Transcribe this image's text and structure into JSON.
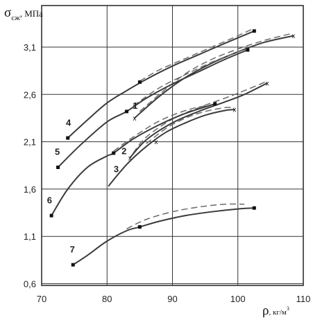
{
  "chart_data": {
    "type": "line",
    "title": "",
    "ylabel": {
      "main": "σ",
      "sub": "сж",
      "unit": ", МПа"
    },
    "xlabel": {
      "main": "ρ",
      "unit": ", кг/м",
      "sup": "3"
    },
    "xlim": [
      70,
      110
    ],
    "ylim": [
      0.6,
      3.4
    ],
    "x_ticks": [
      "70",
      "80",
      "90",
      "100",
      "110"
    ],
    "x_tick_values": [
      70,
      80,
      90,
      100,
      110
    ],
    "y_ticks": [
      "0,6",
      "1,1",
      "1,6",
      "2,1",
      "2,6",
      "3,1"
    ],
    "y_tick_values": [
      0.6,
      1.1,
      1.6,
      2.1,
      2.6,
      3.1
    ],
    "grid": true,
    "series": [
      {
        "label": "1",
        "marker": "x",
        "solid": [
          [
            84.2,
            2.35
          ],
          [
            88,
            2.58
          ],
          [
            92,
            2.78
          ],
          [
            96,
            2.93
          ],
          [
            100,
            3.05
          ],
          [
            104,
            3.15
          ],
          [
            108.5,
            3.22
          ]
        ],
        "dashed": [
          [
            85,
            2.42
          ],
          [
            88,
            2.6
          ],
          [
            92,
            2.82
          ],
          [
            96,
            2.97
          ],
          [
            100,
            3.08
          ],
          [
            104,
            3.17
          ],
          [
            108,
            3.24
          ]
        ],
        "end_markers": [
          [
            84.2,
            2.35
          ],
          [
            108.5,
            3.22
          ]
        ]
      },
      {
        "label": "2",
        "marker": "x",
        "solid": [
          [
            83.5,
            1.93
          ],
          [
            86,
            2.12
          ],
          [
            90,
            2.3
          ],
          [
            94,
            2.42
          ],
          [
            98,
            2.52
          ],
          [
            101,
            2.6
          ],
          [
            104.5,
            2.72
          ]
        ],
        "dashed": [
          [
            84,
            1.98
          ],
          [
            86,
            2.15
          ],
          [
            90,
            2.34
          ],
          [
            94,
            2.46
          ],
          [
            98,
            2.56
          ],
          [
            101,
            2.64
          ],
          [
            104.5,
            2.74
          ]
        ],
        "end_markers": [
          [
            83.5,
            1.93
          ],
          [
            104.5,
            2.72
          ]
        ]
      },
      {
        "label": "3",
        "marker": "x",
        "solid": [
          [
            80.2,
            1.63
          ],
          [
            83,
            1.86
          ],
          [
            86,
            2.05
          ],
          [
            89,
            2.2
          ],
          [
            92,
            2.3
          ],
          [
            95,
            2.38
          ],
          [
            98,
            2.43
          ],
          [
            99.5,
            2.44
          ]
        ],
        "dashed": [
          [
            86,
            2.08
          ],
          [
            89,
            2.24
          ],
          [
            92,
            2.35
          ],
          [
            95,
            2.42
          ],
          [
            98,
            2.46
          ],
          [
            99.5,
            2.46
          ]
        ],
        "end_markers": [
          [
            87.5,
            2.1
          ],
          [
            99.5,
            2.44
          ]
        ]
      },
      {
        "label": "4",
        "marker": "square",
        "solid": [
          [
            74,
            2.14
          ],
          [
            77,
            2.33
          ],
          [
            80,
            2.51
          ],
          [
            83,
            2.64
          ],
          [
            86,
            2.76
          ],
          [
            90,
            2.9
          ],
          [
            94,
            3.02
          ],
          [
            98,
            3.14
          ],
          [
            102.5,
            3.27
          ]
        ],
        "dashed": [
          [
            85,
            2.74
          ],
          [
            88,
            2.86
          ],
          [
            92,
            2.98
          ],
          [
            96,
            3.1
          ],
          [
            100,
            3.22
          ],
          [
            102.5,
            3.3
          ]
        ],
        "end_markers": [
          [
            74,
            2.14
          ],
          [
            85,
            2.73
          ],
          [
            102.5,
            3.27
          ]
        ]
      },
      {
        "label": "5",
        "marker": "square",
        "solid": [
          [
            72.5,
            1.83
          ],
          [
            76,
            2.07
          ],
          [
            80,
            2.31
          ],
          [
            83,
            2.42
          ],
          [
            86,
            2.56
          ],
          [
            90,
            2.71
          ],
          [
            94,
            2.84
          ],
          [
            98,
            2.97
          ],
          [
            101.5,
            3.07
          ]
        ],
        "dashed": [
          [
            84,
            2.48
          ],
          [
            88,
            2.67
          ],
          [
            92,
            2.81
          ],
          [
            96,
            2.94
          ],
          [
            100,
            3.05
          ],
          [
            101.5,
            3.1
          ]
        ],
        "end_markers": [
          [
            72.5,
            1.83
          ],
          [
            83,
            2.42
          ],
          [
            101.5,
            3.07
          ]
        ]
      },
      {
        "label": "6",
        "marker": "square",
        "solid": [
          [
            71.5,
            1.32
          ],
          [
            74,
            1.6
          ],
          [
            77,
            1.83
          ],
          [
            80,
            1.95
          ],
          [
            81,
            1.98
          ],
          [
            84,
            2.13
          ],
          [
            88,
            2.28
          ],
          [
            92,
            2.4
          ],
          [
            96.5,
            2.5
          ]
        ],
        "dashed": [
          [
            81,
            2.0
          ],
          [
            84,
            2.15
          ],
          [
            88,
            2.32
          ],
          [
            92,
            2.43
          ],
          [
            95,
            2.48
          ]
        ],
        "end_markers": [
          [
            71.5,
            1.32
          ],
          [
            81,
            1.98
          ],
          [
            96.5,
            2.5
          ]
        ]
      },
      {
        "label": "7",
        "marker": "square",
        "solid": [
          [
            74.8,
            0.8
          ],
          [
            77,
            0.9
          ],
          [
            80,
            1.05
          ],
          [
            83,
            1.16
          ],
          [
            85,
            1.2
          ],
          [
            88,
            1.26
          ],
          [
            92,
            1.32
          ],
          [
            96,
            1.36
          ],
          [
            100,
            1.39
          ],
          [
            102.5,
            1.4
          ]
        ],
        "dashed": [
          [
            83,
            1.18
          ],
          [
            86,
            1.28
          ],
          [
            90,
            1.36
          ],
          [
            94,
            1.41
          ],
          [
            98,
            1.44
          ],
          [
            101,
            1.44
          ]
        ],
        "end_markers": [
          [
            74.8,
            0.8
          ],
          [
            85,
            1.2
          ],
          [
            102.5,
            1.4
          ]
        ]
      }
    ],
    "label_positions": [
      {
        "label": "1",
        "x": 84.3,
        "y": 2.45
      },
      {
        "label": "2",
        "x": 82.6,
        "y": 1.97
      },
      {
        "label": "3",
        "x": 81.4,
        "y": 1.78
      },
      {
        "label": "4",
        "x": 74.1,
        "y": 2.27
      },
      {
        "label": "5",
        "x": 72.4,
        "y": 1.96
      },
      {
        "label": "6",
        "x": 71.2,
        "y": 1.45
      },
      {
        "label": "7",
        "x": 74.7,
        "y": 0.93
      }
    ]
  }
}
